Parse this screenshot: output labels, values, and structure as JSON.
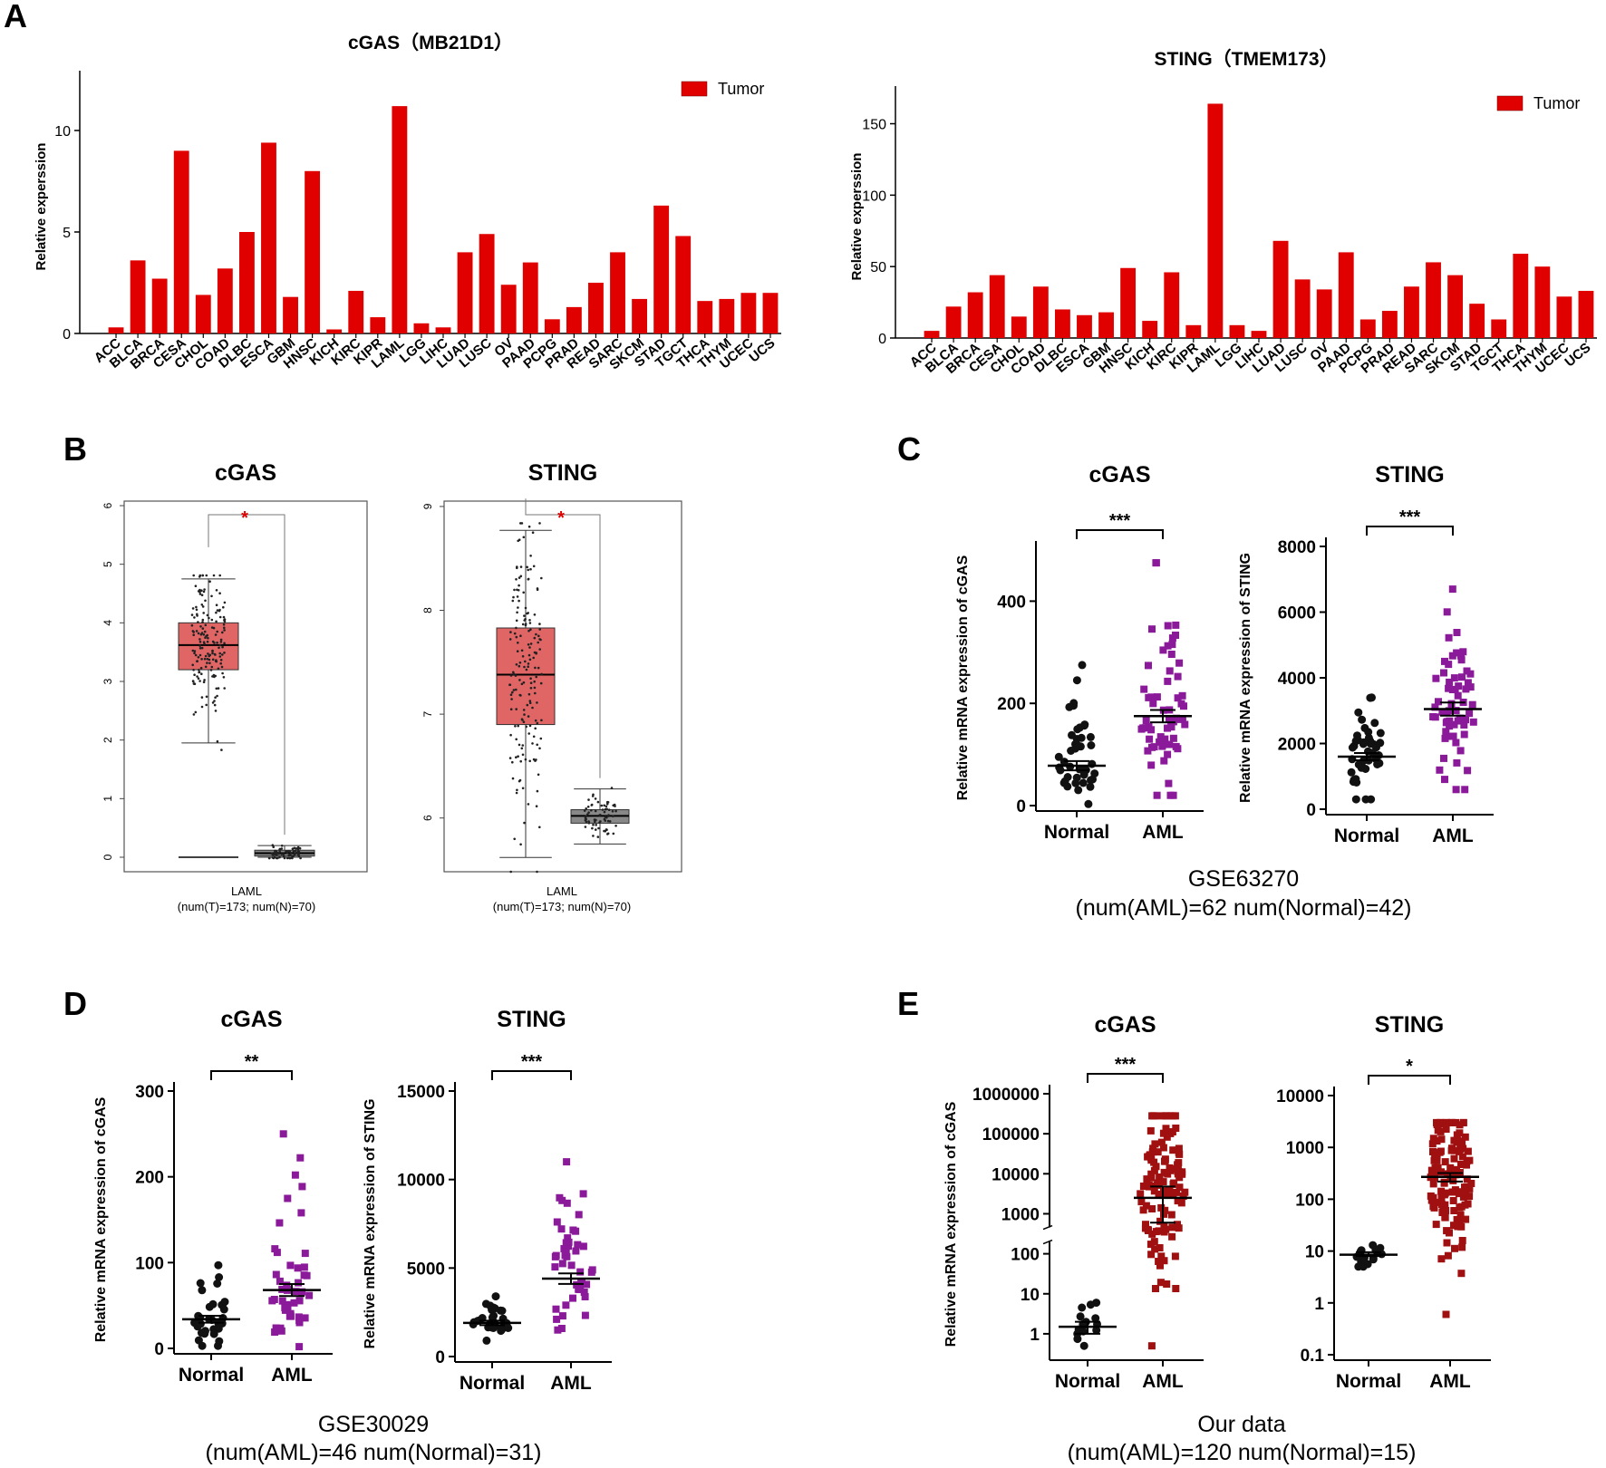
{
  "panels": {
    "a": {
      "letter": "A",
      "categories": [
        "ACC",
        "BLCA",
        "BRCA",
        "CESA",
        "CHOL",
        "COAD",
        "DLBC",
        "ESCA",
        "GBM",
        "HNSC",
        "KICH",
        "KIRC",
        "KIPR",
        "LAML",
        "LGG",
        "LIHC",
        "LUAD",
        "LUSC",
        "OV",
        "PAAD",
        "PCPG",
        "PRAD",
        "READ",
        "SARC",
        "SKCM",
        "STAD",
        "TGCT",
        "THCA",
        "THYM",
        "UCEC",
        "UCS"
      ]
    },
    "b": {
      "letter": "B",
      "xlabel": "LAML",
      "count_label": "(num(T)=173; num(N)=70)"
    },
    "c": {
      "letter": "C",
      "dataset": "GSE63270",
      "counts": "(num(AML)=62 num(Normal)=42)"
    },
    "d": {
      "letter": "D",
      "dataset": "GSE30029",
      "counts": "(num(AML)=46 num(Normal)=31)"
    },
    "e": {
      "letter": "E",
      "dataset": "Our data",
      "counts": "(num(AML)=120 num(Normal)=15)"
    }
  },
  "colors": {
    "tumor_bar": "#e00000",
    "box_tumor": "#e06666",
    "box_normal": "#888888",
    "aml_purple": "#8b1a9b",
    "aml_darkred": "#a01010",
    "normal_dots": "#111111"
  },
  "chart_data": [
    {
      "id": "A-cGAS",
      "type": "bar",
      "title": "cGAS（MB21D1）",
      "ylabel": "Relative experssion",
      "legend": [
        "Tumor"
      ],
      "legend_position": "top-right",
      "ylim": [
        0,
        12.5
      ],
      "yticks": [
        0,
        5,
        10
      ],
      "values": [
        0.3,
        3.6,
        2.7,
        9.0,
        1.9,
        3.2,
        5.0,
        9.4,
        1.8,
        8.0,
        0.2,
        2.1,
        0.8,
        11.2,
        0.5,
        0.3,
        4.0,
        4.9,
        2.4,
        3.5,
        0.7,
        1.3,
        2.5,
        4.0,
        1.7,
        6.3,
        4.8,
        1.6,
        1.7,
        2.0,
        2.0
      ]
    },
    {
      "id": "A-STING",
      "type": "bar",
      "title": "STING（TMEM173）",
      "ylabel": "Relative experssion",
      "legend": [
        "Tumor"
      ],
      "legend_position": "top-right",
      "ylim": [
        0,
        170
      ],
      "yticks": [
        0,
        50,
        100,
        150
      ],
      "values": [
        5,
        22,
        32,
        44,
        15,
        36,
        20,
        16,
        18,
        49,
        12,
        46,
        9,
        164,
        9,
        5,
        68,
        41,
        34,
        60,
        13,
        19,
        36,
        53,
        44,
        24,
        13,
        59,
        50,
        29,
        33
      ]
    },
    {
      "id": "B-cGAS",
      "type": "box",
      "title": "cGAS",
      "xlabel": "LAML",
      "ylim": [
        0,
        6
      ],
      "yticks": [
        0,
        1,
        2,
        3,
        4,
        5,
        6
      ],
      "significance": "*",
      "boxes": [
        {
          "name": "T",
          "q1": 3.2,
          "median": 3.62,
          "q3": 4.0,
          "whisker_low": 1.95,
          "whisker_high": 4.75,
          "n": 173
        },
        {
          "name": "N",
          "q1": 0.02,
          "median": 0.07,
          "q3": 0.12,
          "whisker_low": 0.0,
          "whisker_high": 0.2,
          "n": 70
        }
      ]
    },
    {
      "id": "B-STING",
      "type": "box",
      "title": "STING",
      "xlabel": "LAML",
      "ylim": [
        5.5,
        9.2
      ],
      "yticks": [
        6,
        7,
        8,
        9
      ],
      "significance": "*",
      "boxes": [
        {
          "name": "T",
          "q1": 6.9,
          "median": 7.38,
          "q3": 7.83,
          "whisker_low": 5.62,
          "whisker_high": 8.77,
          "n": 173
        },
        {
          "name": "N",
          "q1": 5.95,
          "median": 6.02,
          "q3": 6.08,
          "whisker_low": 5.75,
          "whisker_high": 6.28,
          "n": 70
        }
      ]
    },
    {
      "id": "C-cGAS",
      "type": "scatter",
      "title": "cGAS",
      "ylabel": "Relative mRNA expression of cGAS",
      "categories": [
        "Normal",
        "AML"
      ],
      "ylim": [
        0,
        500
      ],
      "yticks": [
        0,
        200,
        400
      ],
      "scale": "linear",
      "significance": "***",
      "groups": [
        {
          "name": "Normal",
          "n": 42,
          "mean": 78,
          "min": 3,
          "max": 275,
          "sem": 9
        },
        {
          "name": "AML",
          "n": 62,
          "mean": 175,
          "min": 20,
          "max": 475,
          "sem": 12
        }
      ]
    },
    {
      "id": "C-STING",
      "type": "scatter",
      "title": "STING",
      "ylabel": "Relative mRNA expression of STING",
      "categories": [
        "Normal",
        "AML"
      ],
      "ylim": [
        0,
        8000
      ],
      "yticks": [
        0,
        2000,
        4000,
        6000,
        8000
      ],
      "scale": "linear",
      "significance": "***",
      "groups": [
        {
          "name": "Normal",
          "n": 42,
          "mean": 1600,
          "min": 300,
          "max": 3400,
          "sem": 110
        },
        {
          "name": "AML",
          "n": 62,
          "mean": 3050,
          "min": 600,
          "max": 6700,
          "sem": 200
        }
      ]
    },
    {
      "id": "D-cGAS",
      "type": "scatter",
      "title": "cGAS",
      "ylabel": "Relative mRNA expression of cGAS",
      "categories": [
        "Normal",
        "AML"
      ],
      "ylim": [
        0,
        300
      ],
      "yticks": [
        0,
        100,
        200,
        300
      ],
      "scale": "linear",
      "significance": "**",
      "groups": [
        {
          "name": "Normal",
          "n": 31,
          "mean": 34,
          "min": 3,
          "max": 97,
          "sem": 4
        },
        {
          "name": "AML",
          "n": 46,
          "mean": 68,
          "min": 2,
          "max": 250,
          "sem": 7
        }
      ]
    },
    {
      "id": "D-STING",
      "type": "scatter",
      "title": "STING",
      "ylabel": "Relative mRNA expression of STING",
      "categories": [
        "Normal",
        "AML"
      ],
      "ylim": [
        0,
        15000
      ],
      "yticks": [
        0,
        5000,
        10000,
        15000
      ],
      "scale": "linear",
      "significance": "***",
      "groups": [
        {
          "name": "Normal",
          "n": 31,
          "mean": 1900,
          "min": 900,
          "max": 3400,
          "sem": 130
        },
        {
          "name": "AML",
          "n": 46,
          "mean": 4400,
          "min": 1500,
          "max": 11000,
          "sem": 300
        }
      ]
    },
    {
      "id": "E-cGAS",
      "type": "scatter",
      "title": "cGAS",
      "ylabel": "Relative mRNA expression of cGAS",
      "categories": [
        "Normal",
        "AML"
      ],
      "ylim": [
        0.3,
        1000000
      ],
      "yticks": [
        1,
        10,
        100,
        1000,
        10000,
        100000,
        1000000
      ],
      "ytick_labels": [
        "1",
        "10",
        "100",
        "1000",
        "10000",
        "100000",
        "1000000"
      ],
      "scale": "log",
      "broken_axis": true,
      "significance": "***",
      "groups": [
        {
          "name": "Normal",
          "n": 15,
          "mean": 1.5,
          "min": 0.5,
          "max": 6,
          "sem_low": 1.0,
          "sem_high": 2.0
        },
        {
          "name": "AML",
          "n": 120,
          "mean": 2500,
          "min": 0.5,
          "max": 280000,
          "sem_low": 600,
          "sem_high": 4800
        }
      ]
    },
    {
      "id": "E-STING",
      "type": "scatter",
      "title": "STING",
      "ylabel": "",
      "categories": [
        "Normal",
        "AML"
      ],
      "ylim": [
        0.1,
        10000
      ],
      "yticks": [
        0.1,
        1,
        10,
        100,
        1000,
        10000
      ],
      "ytick_labels": [
        "0.1",
        "1",
        "10",
        "100",
        "1000",
        "10000"
      ],
      "scale": "log",
      "significance": "*",
      "groups": [
        {
          "name": "Normal",
          "n": 15,
          "mean": 8.5,
          "min": 5,
          "max": 13,
          "sem_low": 8,
          "sem_high": 9.5
        },
        {
          "name": "AML",
          "n": 120,
          "mean": 270,
          "min": 0.6,
          "max": 3000,
          "sem_low": 220,
          "sem_high": 320
        }
      ]
    }
  ]
}
